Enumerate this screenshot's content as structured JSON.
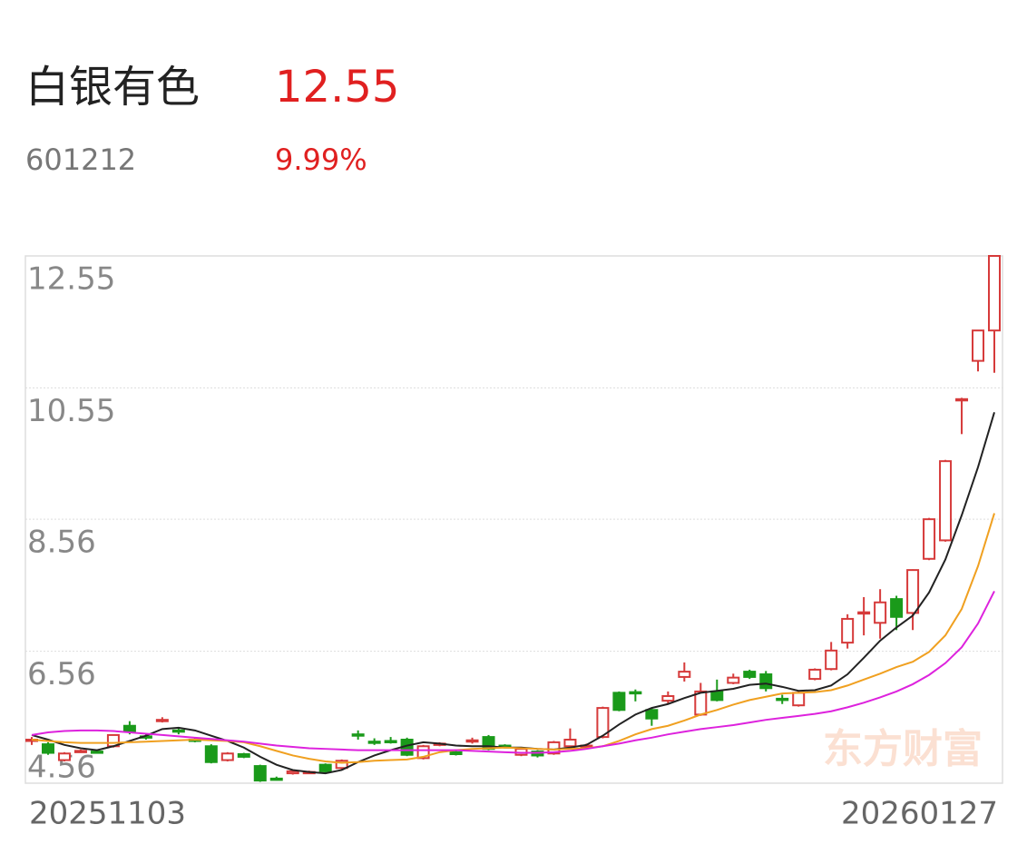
{
  "header": {
    "title": "白银有色",
    "price": "12.55",
    "code": "601212",
    "change": "9.99%"
  },
  "chart_data": {
    "type": "candlestick",
    "categories": [
      "20251103",
      null,
      null,
      null,
      null,
      null,
      null,
      null,
      null,
      null,
      null,
      null,
      null,
      null,
      null,
      null,
      null,
      null,
      null,
      null,
      null,
      null,
      null,
      null,
      null,
      null,
      null,
      null,
      null,
      null,
      null,
      null,
      null,
      null,
      null,
      null,
      null,
      null,
      null,
      null,
      null,
      null,
      null,
      null,
      null,
      null,
      null,
      null,
      null,
      null,
      null,
      null,
      null,
      null,
      null,
      null,
      null,
      null,
      null,
      "20260127"
    ],
    "open": [
      5.2,
      5.15,
      4.91,
      5.04,
      5.04,
      5.12,
      5.43,
      5.27,
      5.5,
      5.36,
      5.22,
      5.12,
      4.91,
      5.0,
      4.82,
      4.63,
      4.71,
      4.72,
      4.84,
      4.79,
      5.3,
      5.19,
      5.2,
      5.22,
      4.94,
      5.15,
      5.03,
      5.19,
      5.26,
      5.13,
      4.99,
      5.04,
      5.01,
      5.12,
      5.12,
      5.26,
      5.93,
      5.94,
      5.67,
      5.81,
      6.17,
      5.6,
      5.95,
      6.08,
      6.25,
      6.21,
      5.84,
      5.74,
      6.14,
      6.29,
      6.69,
      7.14,
      6.99,
      7.35,
      7.14,
      7.96,
      8.24,
      10.37,
      10.96,
      11.42
    ],
    "high": [
      5.26,
      5.18,
      5.03,
      5.07,
      5.07,
      5.3,
      5.5,
      5.3,
      5.56,
      5.4,
      5.26,
      5.15,
      5.03,
      5.02,
      4.84,
      4.66,
      4.76,
      4.75,
      4.86,
      4.92,
      5.36,
      5.24,
      5.26,
      5.25,
      5.14,
      5.18,
      5.05,
      5.25,
      5.29,
      5.15,
      5.1,
      5.06,
      5.2,
      5.39,
      5.16,
      5.72,
      5.95,
      5.98,
      5.69,
      5.95,
      6.39,
      6.08,
      6.13,
      6.22,
      6.28,
      6.26,
      5.9,
      5.95,
      6.3,
      6.7,
      7.12,
      7.38,
      7.5,
      7.4,
      7.8,
      8.58,
      9.46,
      10.4,
      11.42,
      12.55
    ],
    "low": [
      5.14,
      4.99,
      4.89,
      5.02,
      5.01,
      5.1,
      5.3,
      5.22,
      5.48,
      5.3,
      5.18,
      4.86,
      4.89,
      4.94,
      4.58,
      4.6,
      4.69,
      4.7,
      4.72,
      4.76,
      5.22,
      5.14,
      5.16,
      4.97,
      4.92,
      5.12,
      4.98,
      5.16,
      5.06,
      5.09,
      4.97,
      4.95,
      4.99,
      5.1,
      5.1,
      5.24,
      5.65,
      5.8,
      5.43,
      5.76,
      6.1,
      5.58,
      5.8,
      6.06,
      6.14,
      5.95,
      5.76,
      5.72,
      6.12,
      6.27,
      6.6,
      6.8,
      6.75,
      6.88,
      6.88,
      7.94,
      8.22,
      9.85,
      10.8,
      10.78
    ],
    "close": [
      5.22,
      5.02,
      5.01,
      5.05,
      5.03,
      5.29,
      5.35,
      5.26,
      5.52,
      5.35,
      5.21,
      4.88,
      5.01,
      4.96,
      4.6,
      4.62,
      4.74,
      4.73,
      4.74,
      4.9,
      5.28,
      5.17,
      5.18,
      4.99,
      5.12,
      5.16,
      5.0,
      5.21,
      5.08,
      5.11,
      5.08,
      4.98,
      5.18,
      5.22,
      5.13,
      5.7,
      5.67,
      5.92,
      5.54,
      5.88,
      6.25,
      5.95,
      5.82,
      6.16,
      6.17,
      6.0,
      5.82,
      5.93,
      6.28,
      6.57,
      7.05,
      7.15,
      7.3,
      7.08,
      7.79,
      8.56,
      9.44,
      10.38,
      11.42,
      12.55
    ],
    "up_color": "#d63a3a",
    "down_color": "#1a9a1a",
    "ma_lines": [
      {
        "color": "#222222",
        "values": [
          5.29,
          5.22,
          5.14,
          5.09,
          5.06,
          5.12,
          5.2,
          5.28,
          5.38,
          5.4,
          5.36,
          5.28,
          5.2,
          5.1,
          4.96,
          4.84,
          4.76,
          4.73,
          4.71,
          4.76,
          4.88,
          4.98,
          5.06,
          5.13,
          5.18,
          5.16,
          5.13,
          5.12,
          5.12,
          5.1,
          5.1,
          5.08,
          5.07,
          5.1,
          5.14,
          5.28,
          5.45,
          5.6,
          5.7,
          5.76,
          5.85,
          5.93,
          5.96,
          5.99,
          6.05,
          6.07,
          6.02,
          5.96,
          5.97,
          6.04,
          6.21,
          6.46,
          6.72,
          6.92,
          7.1,
          7.45,
          7.95,
          8.62,
          9.35,
          10.18
        ]
      },
      {
        "color": "#f0a020",
        "values": [
          5.22,
          5.2,
          5.18,
          5.17,
          5.17,
          5.17,
          5.18,
          5.19,
          5.2,
          5.21,
          5.22,
          5.21,
          5.2,
          5.18,
          5.12,
          5.05,
          4.98,
          4.93,
          4.89,
          4.87,
          4.88,
          4.9,
          4.91,
          4.92,
          4.96,
          5.03,
          5.06,
          5.08,
          5.09,
          5.1,
          5.09,
          5.08,
          5.07,
          5.08,
          5.09,
          5.12,
          5.2,
          5.3,
          5.38,
          5.43,
          5.51,
          5.6,
          5.67,
          5.75,
          5.82,
          5.87,
          5.92,
          5.93,
          5.94,
          5.97,
          6.04,
          6.13,
          6.22,
          6.32,
          6.4,
          6.55,
          6.8,
          7.2,
          7.85,
          8.65
        ]
      },
      {
        "color": "#dd22dd",
        "values": [
          5.29,
          5.33,
          5.35,
          5.36,
          5.36,
          5.35,
          5.33,
          5.31,
          5.29,
          5.27,
          5.25,
          5.23,
          5.21,
          5.19,
          5.16,
          5.13,
          5.11,
          5.09,
          5.08,
          5.07,
          5.06,
          5.06,
          5.06,
          5.06,
          5.06,
          5.06,
          5.06,
          5.05,
          5.04,
          5.03,
          5.02,
          5.02,
          5.03,
          5.05,
          5.08,
          5.12,
          5.16,
          5.21,
          5.25,
          5.3,
          5.34,
          5.38,
          5.41,
          5.44,
          5.48,
          5.52,
          5.55,
          5.58,
          5.61,
          5.65,
          5.71,
          5.78,
          5.86,
          5.95,
          6.06,
          6.2,
          6.38,
          6.62,
          6.98,
          7.47
        ]
      }
    ],
    "ylim": [
      4.56,
      12.55
    ],
    "yticks": [
      12.55,
      10.55,
      8.56,
      6.56,
      4.56
    ],
    "grid": true,
    "watermark": "东方财富"
  }
}
